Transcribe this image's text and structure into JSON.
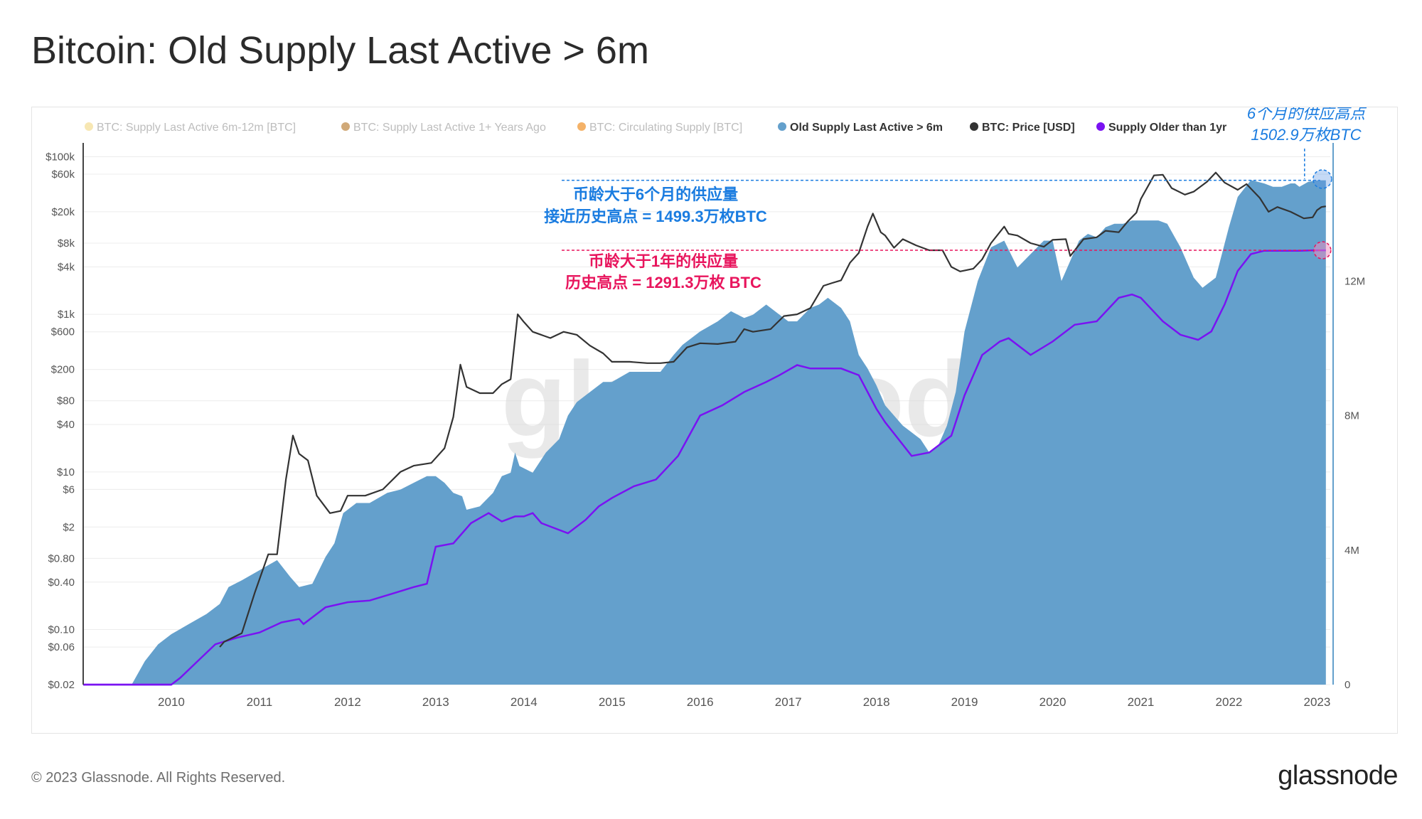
{
  "page": {
    "title": "Bitcoin: Old Supply Last Active > 6m",
    "copyright": "© 2023 Glassnode. All Rights Reserved.",
    "brand": "glassnode",
    "watermark": "glassnode"
  },
  "colors": {
    "supply6m": "#64a0cc",
    "price": "#333333",
    "supply1y": "#7a12f2",
    "ann6m": "#1a7ce0",
    "ann1y": "#e8155d",
    "leg_6m12m": "#f6e3a6",
    "leg_1y": "#c89a60",
    "leg_circ": "#f2a44d",
    "axis": "#444444",
    "tick": "#555555",
    "grid": "#ececec",
    "rightaxis": "#64a0cc"
  },
  "chart_data": {
    "type": "area",
    "title": "Bitcoin: Old Supply Last Active > 6m",
    "xlim": [
      2009.0,
      2023.15
    ],
    "legend_position": "top",
    "grid": true,
    "legend": [
      {
        "label": "BTC: Supply Last Active 6m-12m [BTC]",
        "color_key": "leg_6m12m",
        "active": false
      },
      {
        "label": "BTC: Supply Last Active 1+ Years Ago",
        "color_key": "leg_1y",
        "active": false
      },
      {
        "label": "BTC: Circulating Supply [BTC]",
        "color_key": "leg_circ",
        "active": false
      },
      {
        "label": "Old Supply Last Active > 6m",
        "color_key": "supply6m",
        "active": true
      },
      {
        "label": "BTC: Price [USD]",
        "color_key": "price",
        "active": true
      },
      {
        "label": "Supply Older than 1yr",
        "color_key": "supply1y",
        "active": true
      }
    ],
    "x_ticks": [
      "2010",
      "2011",
      "2012",
      "2013",
      "2014",
      "2015",
      "2016",
      "2017",
      "2018",
      "2019",
      "2020",
      "2021",
      "2022",
      "2023"
    ],
    "x_tick_values": [
      2010,
      2011,
      2012,
      2013,
      2014,
      2015,
      2016,
      2017,
      2018,
      2019,
      2020,
      2021,
      2022,
      2023
    ],
    "y_left": {
      "scale": "log",
      "range": [
        0.02,
        135000
      ],
      "ticks": [
        {
          "label": "$100k",
          "value": 100000
        },
        {
          "label": "$60k",
          "value": 60000
        },
        {
          "label": "$20k",
          "value": 20000
        },
        {
          "label": "$8k",
          "value": 8000
        },
        {
          "label": "$4k",
          "value": 4000
        },
        {
          "label": "$1k",
          "value": 1000
        },
        {
          "label": "$600",
          "value": 600
        },
        {
          "label": "$200",
          "value": 200
        },
        {
          "label": "$80",
          "value": 80
        },
        {
          "label": "$40",
          "value": 40
        },
        {
          "label": "$10",
          "value": 10
        },
        {
          "label": "$6",
          "value": 6
        },
        {
          "label": "$2",
          "value": 2
        },
        {
          "label": "$0.80",
          "value": 0.8
        },
        {
          "label": "$0.40",
          "value": 0.4
        },
        {
          "label": "$0.10",
          "value": 0.1
        },
        {
          "label": "$0.06",
          "value": 0.06
        },
        {
          "label": "$0.02",
          "value": 0.02
        }
      ]
    },
    "y_right": {
      "scale": "linear",
      "range": [
        0,
        16000000
      ],
      "ticks": [
        {
          "label": "0",
          "value": 0
        },
        {
          "label": "4M",
          "value": 4000000
        },
        {
          "label": "8M",
          "value": 8000000
        },
        {
          "label": "12M",
          "value": 12000000
        }
      ]
    },
    "series": [
      {
        "name": "Old Supply Last Active > 6m",
        "type": "area",
        "axis": "right",
        "color_key": "supply6m",
        "x": [
          2009.0,
          2009.55,
          2009.7,
          2009.85,
          2010.0,
          2010.2,
          2010.4,
          2010.55,
          2010.65,
          2010.8,
          2011.0,
          2011.2,
          2011.35,
          2011.45,
          2011.6,
          2011.75,
          2011.85,
          2011.95,
          2012.1,
          2012.25,
          2012.45,
          2012.6,
          2012.75,
          2012.9,
          2013.0,
          2013.1,
          2013.2,
          2013.3,
          2013.35,
          2013.5,
          2013.65,
          2013.75,
          2013.85,
          2013.9,
          2013.95,
          2014.1,
          2014.25,
          2014.4,
          2014.5,
          2014.6,
          2014.75,
          2014.9,
          2015.0,
          2015.2,
          2015.4,
          2015.55,
          2015.7,
          2015.8,
          2016.0,
          2016.2,
          2016.35,
          2016.5,
          2016.6,
          2016.75,
          2016.9,
          2017.0,
          2017.1,
          2017.25,
          2017.35,
          2017.45,
          2017.6,
          2017.7,
          2017.8,
          2017.9,
          2018.0,
          2018.1,
          2018.3,
          2018.5,
          2018.6,
          2018.7,
          2018.8,
          2018.9,
          2019.0,
          2019.15,
          2019.3,
          2019.45,
          2019.6,
          2019.75,
          2019.9,
          2020.0,
          2020.1,
          2020.2,
          2020.3,
          2020.4,
          2020.5,
          2020.6,
          2020.7,
          2020.8,
          2020.9,
          2021.0,
          2021.1,
          2021.2,
          2021.3,
          2021.45,
          2021.6,
          2021.7,
          2021.85,
          2022.0,
          2022.1,
          2022.25,
          2022.4,
          2022.5,
          2022.6,
          2022.7,
          2022.75,
          2022.8,
          2022.9,
          2023.0,
          2023.06,
          2023.1
        ],
        "y": [
          0,
          0,
          700000,
          1200000,
          1500000,
          1800000,
          2100000,
          2400000,
          2900000,
          3100000,
          3400000,
          3700000,
          3200000,
          2900000,
          3000000,
          3800000,
          4200000,
          5100000,
          5400000,
          5400000,
          5700000,
          5800000,
          6000000,
          6200000,
          6200000,
          6000000,
          5700000,
          5600000,
          5200000,
          5300000,
          5700000,
          6200000,
          6300000,
          6900000,
          6500000,
          6300000,
          6900000,
          7300000,
          8000000,
          8400000,
          8700000,
          9000000,
          9000000,
          9300000,
          9300000,
          9300000,
          9800000,
          10100000,
          10500000,
          10800000,
          11100000,
          10900000,
          11000000,
          11300000,
          11000000,
          10800000,
          10800000,
          11200000,
          11300000,
          11500000,
          11200000,
          10800000,
          9800000,
          9400000,
          8900000,
          8300000,
          7700000,
          7300000,
          6900000,
          7100000,
          7700000,
          8700000,
          10500000,
          12000000,
          13000000,
          13200000,
          12400000,
          12800000,
          13200000,
          13200000,
          12000000,
          12600000,
          13200000,
          13400000,
          13300000,
          13600000,
          13700000,
          13700000,
          13800000,
          13800000,
          13800000,
          13800000,
          13700000,
          13000000,
          12100000,
          11800000,
          12100000,
          13600000,
          14500000,
          15000000,
          14900000,
          14800000,
          14800000,
          14900000,
          14900000,
          14800000,
          14950000,
          14990000,
          14993000,
          14993000
        ]
      },
      {
        "name": "BTC: Price [USD]",
        "type": "line",
        "axis": "left",
        "color_key": "price",
        "x": [
          2010.55,
          2010.6,
          2010.8,
          2010.95,
          2011.1,
          2011.2,
          2011.3,
          2011.38,
          2011.45,
          2011.55,
          2011.65,
          2011.8,
          2011.92,
          2012.0,
          2012.2,
          2012.4,
          2012.6,
          2012.75,
          2012.95,
          2013.1,
          2013.2,
          2013.28,
          2013.35,
          2013.5,
          2013.65,
          2013.75,
          2013.85,
          2013.93,
          2014.0,
          2014.1,
          2014.3,
          2014.45,
          2014.6,
          2014.75,
          2014.9,
          2015.0,
          2015.2,
          2015.4,
          2015.55,
          2015.7,
          2015.85,
          2016.0,
          2016.2,
          2016.4,
          2016.5,
          2016.6,
          2016.8,
          2016.95,
          2017.1,
          2017.25,
          2017.4,
          2017.5,
          2017.6,
          2017.7,
          2017.8,
          2017.9,
          2017.96,
          2018.05,
          2018.1,
          2018.2,
          2018.3,
          2018.45,
          2018.6,
          2018.75,
          2018.85,
          2018.95,
          2019.1,
          2019.2,
          2019.3,
          2019.45,
          2019.5,
          2019.6,
          2019.75,
          2019.9,
          2020.0,
          2020.15,
          2020.2,
          2020.35,
          2020.5,
          2020.6,
          2020.75,
          2020.85,
          2020.95,
          2021.0,
          2021.15,
          2021.25,
          2021.35,
          2021.5,
          2021.6,
          2021.75,
          2021.85,
          2021.95,
          2022.1,
          2022.2,
          2022.35,
          2022.45,
          2022.55,
          2022.7,
          2022.85,
          2022.95,
          2023.0,
          2023.05,
          2023.1
        ],
        "y": [
          0.06,
          0.07,
          0.09,
          0.3,
          0.9,
          0.9,
          8,
          29,
          17,
          14,
          5,
          3,
          3.2,
          5,
          5,
          6,
          10,
          12,
          13,
          20,
          50,
          230,
          120,
          100,
          100,
          130,
          150,
          1000,
          800,
          600,
          500,
          600,
          550,
          400,
          320,
          250,
          250,
          240,
          240,
          250,
          380,
          430,
          420,
          450,
          650,
          600,
          650,
          950,
          1000,
          1200,
          2300,
          2500,
          2700,
          4500,
          6000,
          13000,
          19000,
          11000,
          10000,
          7000,
          9000,
          7500,
          6500,
          6500,
          4000,
          3500,
          3800,
          5000,
          8000,
          13000,
          10500,
          10000,
          8000,
          7200,
          8800,
          9000,
          5500,
          9000,
          9500,
          11500,
          11000,
          15000,
          19500,
          29000,
          58000,
          59000,
          40000,
          33000,
          36000,
          48000,
          63000,
          47000,
          38000,
          45000,
          30000,
          20000,
          23000,
          20000,
          16500,
          17000,
          21000,
          23000,
          23500
        ]
      },
      {
        "name": "Supply Older than 1yr",
        "type": "line",
        "axis": "right",
        "color_key": "supply1y",
        "x": [
          2009.0,
          2010.0,
          2010.1,
          2010.3,
          2010.5,
          2010.75,
          2011.0,
          2011.25,
          2011.45,
          2011.5,
          2011.75,
          2012.0,
          2012.25,
          2012.5,
          2012.75,
          2012.9,
          2013.0,
          2013.2,
          2013.4,
          2013.6,
          2013.75,
          2013.9,
          2014.0,
          2014.1,
          2014.2,
          2014.35,
          2014.5,
          2014.7,
          2014.85,
          2015.0,
          2015.25,
          2015.5,
          2015.75,
          2016.0,
          2016.25,
          2016.5,
          2016.75,
          2016.9,
          2017.1,
          2017.25,
          2017.5,
          2017.6,
          2017.8,
          2018.0,
          2018.1,
          2018.25,
          2018.4,
          2018.6,
          2018.75,
          2018.85,
          2019.0,
          2019.2,
          2019.4,
          2019.5,
          2019.75,
          2020.0,
          2020.25,
          2020.5,
          2020.75,
          2020.9,
          2021.0,
          2021.25,
          2021.45,
          2021.65,
          2021.8,
          2021.95,
          2022.1,
          2022.25,
          2022.4,
          2022.6,
          2022.8,
          2022.95,
          2023.1
        ],
        "y": [
          0,
          0,
          200000,
          700000,
          1200000,
          1400000,
          1550000,
          1850000,
          1950000,
          1800000,
          2300000,
          2450000,
          2500000,
          2700000,
          2900000,
          3000000,
          4100000,
          4200000,
          4800000,
          5100000,
          4850000,
          5000000,
          5000000,
          5100000,
          4800000,
          4650000,
          4500000,
          4900000,
          5300000,
          5550000,
          5900000,
          6100000,
          6800000,
          8000000,
          8300000,
          8700000,
          9000000,
          9200000,
          9500000,
          9400000,
          9400000,
          9400000,
          9200000,
          8200000,
          7800000,
          7300000,
          6800000,
          6900000,
          7200000,
          7400000,
          8600000,
          9800000,
          10200000,
          10300000,
          9800000,
          10200000,
          10700000,
          10800000,
          11500000,
          11600000,
          11500000,
          10800000,
          10400000,
          10250000,
          10500000,
          11300000,
          12300000,
          12800000,
          12900000,
          12900000,
          12900000,
          12913000,
          12913000
        ]
      }
    ],
    "annotations": [
      {
        "lines": [
          "币龄大于6个月的供应量",
          "接近历史高点 = 1499.3万枚BTC"
        ],
        "color_key": "ann6m",
        "bold": true,
        "value": 14993000
      },
      {
        "lines": [
          "币龄大于1年的供应量",
          "历史高点 = 1291.3万枚 BTC"
        ],
        "color_key": "ann1y",
        "bold": true,
        "value": 12913000
      },
      {
        "lines": [
          "6个月的供应高点",
          "1502.9万枚BTC"
        ],
        "color_key": "ann6m",
        "italic": true,
        "value": 15029000
      }
    ]
  }
}
